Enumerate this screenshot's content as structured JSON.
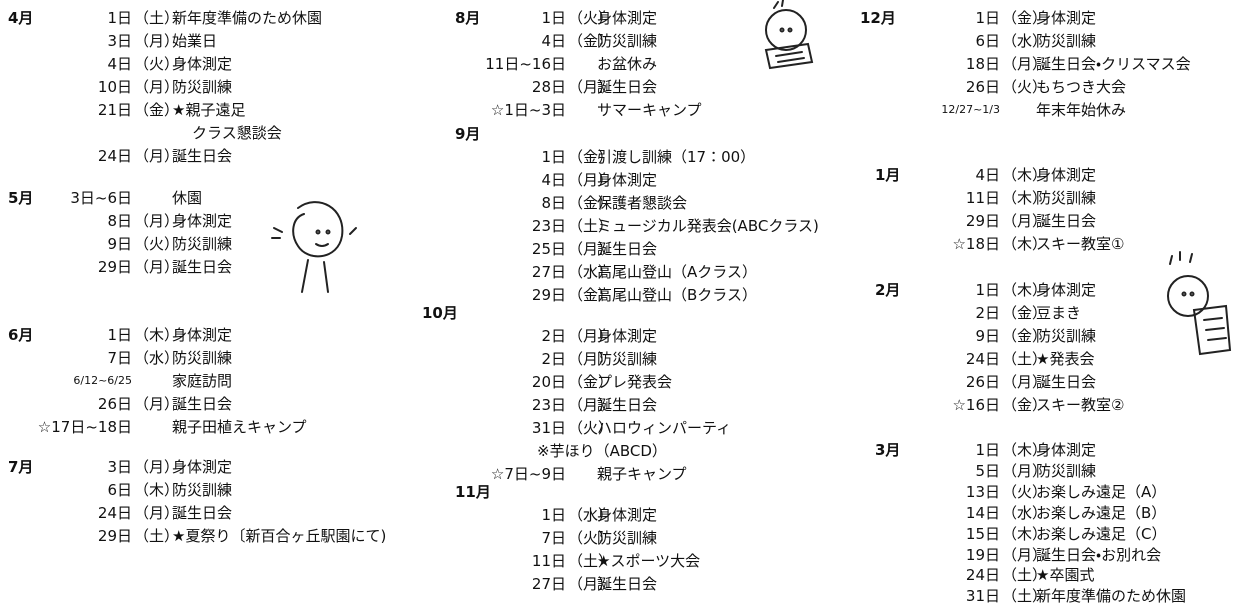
{
  "months": [
    {
      "month": "4月",
      "entries": [
        {
          "date": "1日",
          "day": "（土）",
          "event": "新年度準備のため休園"
        },
        {
          "date": "3日",
          "day": "（月）",
          "event": "始業日"
        },
        {
          "date": "4日",
          "day": "（火）",
          "event": "身体測定"
        },
        {
          "date": "10日",
          "day": "（月）",
          "event": "防災訓練"
        },
        {
          "date": "21日",
          "day": "（金）",
          "event": "★親子遠足",
          "note": "クラス懇談会"
        },
        {
          "date": "24日",
          "day": "（月）",
          "event": "誕生日会"
        }
      ]
    },
    {
      "month": "5月",
      "entries": [
        {
          "date": "3日~6日",
          "event": "休園"
        },
        {
          "date": "8日",
          "day": "（月）",
          "event": "身体測定"
        },
        {
          "date": "9日",
          "day": "（火）",
          "event": "防災訓練"
        },
        {
          "date": "29日",
          "day": "（月）",
          "event": "誕生日会"
        }
      ]
    },
    {
      "month": "6月",
      "entries": [
        {
          "date": "1日",
          "day": "（木）",
          "event": "身体測定"
        },
        {
          "date": "7日",
          "day": "（水）",
          "event": "防災訓練"
        },
        {
          "date": "6/12~6/25",
          "event": "家庭訪問"
        },
        {
          "date": "26日",
          "day": "（月）",
          "event": "誕生日会"
        },
        {
          "date": "☆17日~18日",
          "event": "親子田植えキャンプ"
        }
      ]
    },
    {
      "month": "7月",
      "entries": [
        {
          "date": "3日",
          "day": "（月）",
          "event": "身体測定"
        },
        {
          "date": "6日",
          "day": "（木）",
          "event": "防災訓練"
        },
        {
          "date": "24日",
          "day": "（月）",
          "event": "誕生日会"
        },
        {
          "date": "29日",
          "day": "（土）",
          "event": "★夏祭り〔新百合ヶ丘駅園にて)"
        }
      ]
    },
    {
      "month": "8月",
      "entries": [
        {
          "date": "1日",
          "day": "（火）",
          "event": "身体測定"
        },
        {
          "date": "4日",
          "day": "（金）",
          "event": "防災訓練"
        },
        {
          "date": "11日~16日",
          "event": "お盆休み"
        },
        {
          "date": "28日",
          "day": "（月）",
          "event": "誕生日会"
        },
        {
          "date": "☆1日~3日",
          "event": "サマーキャンプ"
        }
      ]
    },
    {
      "month": "9月",
      "entries": [
        {
          "date": "1日",
          "day": "（金）",
          "event": "引渡し訓練（17：00）"
        },
        {
          "date": "4日",
          "day": "（月）",
          "event": "身体測定"
        },
        {
          "date": "8日",
          "day": "（金）",
          "event": "保護者懇談会"
        },
        {
          "date": "23日",
          "day": "（土）",
          "event": "ミュージカル発表会(ABCクラス)"
        },
        {
          "date": "25日",
          "day": "（月）",
          "event": "誕生日会"
        },
        {
          "date": "27日",
          "day": "（水）",
          "event": "高尾山登山（Aクラス）"
        },
        {
          "date": "29日",
          "day": "（金）",
          "event": "高尾山登山（Bクラス）"
        }
      ]
    },
    {
      "month": "10月",
      "entries": [
        {
          "date": "2日",
          "day": "（月）",
          "event": "身体測定"
        },
        {
          "date": "2日",
          "day": "（月）",
          "event": "防災訓練"
        },
        {
          "date": "20日",
          "day": "（金）",
          "event": "プレ発表会"
        },
        {
          "date": "23日",
          "day": "（月）",
          "event": "誕生日会"
        },
        {
          "date": "31日",
          "day": "（火）",
          "event": "ハロウィンパーティ",
          "note": "※芋ほり（ABCD）"
        },
        {
          "date": "☆7日~9日",
          "event": "親子キャンプ"
        }
      ]
    },
    {
      "month": "11月",
      "entries": [
        {
          "date": "1日",
          "day": "（水）",
          "event": "身体測定"
        },
        {
          "date": "7日",
          "day": "（火）",
          "event": "防災訓練"
        },
        {
          "date": "11日",
          "day": "（土）",
          "event": "★スポーツ大会"
        },
        {
          "date": "27日",
          "day": "（月）",
          "event": "誕生日会"
        }
      ]
    },
    {
      "month": "12月",
      "entries": [
        {
          "date": "1日",
          "day": "（金）",
          "event": "身体測定"
        },
        {
          "date": "6日",
          "day": "（水）",
          "event": "防災訓練"
        },
        {
          "date": "18日",
          "day": "（月）",
          "event": "誕生日会・クリスマス会"
        },
        {
          "date": "26日",
          "day": "（火）",
          "event": "もちつき大会"
        },
        {
          "date": "12/27~1/3",
          "event": "年末年始休み"
        }
      ]
    },
    {
      "month": "1月",
      "entries": [
        {
          "date": "4日",
          "day": "（木）",
          "event": "身体測定"
        },
        {
          "date": "11日",
          "day": "（木）",
          "event": "防災訓練"
        },
        {
          "date": "29日",
          "day": "（月）",
          "event": "誕生日会"
        },
        {
          "date": "☆18日",
          "day": "（木）",
          "event": "スキー教室①"
        }
      ]
    },
    {
      "month": "2月",
      "entries": [
        {
          "date": "1日",
          "day": "（木）",
          "event": "身体測定"
        },
        {
          "date": "2日",
          "day": "（金）",
          "event": "豆まき"
        },
        {
          "date": "9日",
          "day": "（金）",
          "event": "防災訓練"
        },
        {
          "date": "24日",
          "day": "（土）",
          "event": "★発表会"
        },
        {
          "date": "26日",
          "day": "（月）",
          "event": "誕生日会"
        },
        {
          "date": "☆16日",
          "day": "（金）",
          "event": "スキー教室②"
        }
      ]
    },
    {
      "month": "3月",
      "entries": [
        {
          "date": "1日",
          "day": "（木）",
          "event": "身体測定"
        },
        {
          "date": "5日",
          "day": "（月）",
          "event": "防災訓練"
        },
        {
          "date": "13日",
          "day": "（火）",
          "event": "お楽しみ遠足（A）"
        },
        {
          "date": "14日",
          "day": "（水）",
          "event": "お楽しみ遠足（B）"
        },
        {
          "date": "15日",
          "day": "（木）",
          "event": "お楽しみ遠足（C）"
        },
        {
          "date": "19日",
          "day": "（月）",
          "event": "誕生日会・お別れ会"
        },
        {
          "date": "24日",
          "day": "（土）",
          "event": "★卒園式"
        },
        {
          "date": "31日",
          "day": "（土）",
          "event": "新年度準備のため休園"
        }
      ]
    }
  ]
}
